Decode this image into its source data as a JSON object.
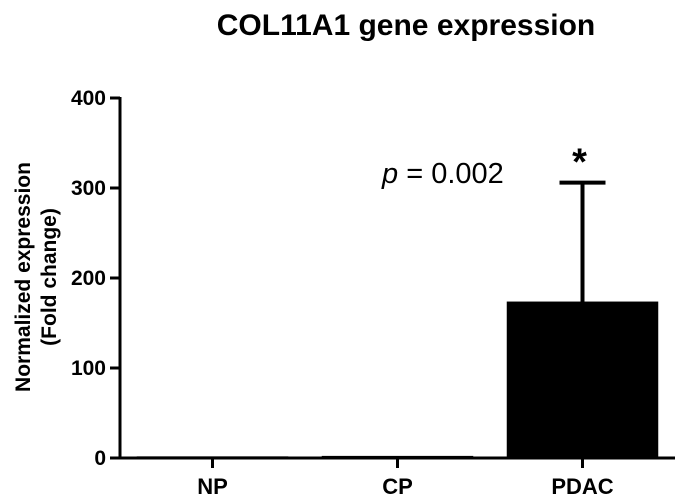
{
  "chart_data": {
    "type": "bar",
    "title": "COL11A1 gene expression",
    "ylabel_lines": [
      "Normalized expression",
      "(Fold change)"
    ],
    "categories": [
      "NP",
      "CP",
      "PDAC"
    ],
    "values": [
      1,
      1.5,
      173
    ],
    "error_upper": [
      0,
      0,
      306
    ],
    "ylim": [
      0,
      400
    ],
    "yticks": [
      0,
      100,
      200,
      300,
      400
    ],
    "bar_colors": [
      "#000000",
      "#000000",
      "#000000"
    ],
    "annotation": {
      "prefix": "p",
      "text": " = 0.002",
      "star": "*",
      "category_index": 2,
      "y": 310
    },
    "grid": false,
    "legend": "none"
  }
}
